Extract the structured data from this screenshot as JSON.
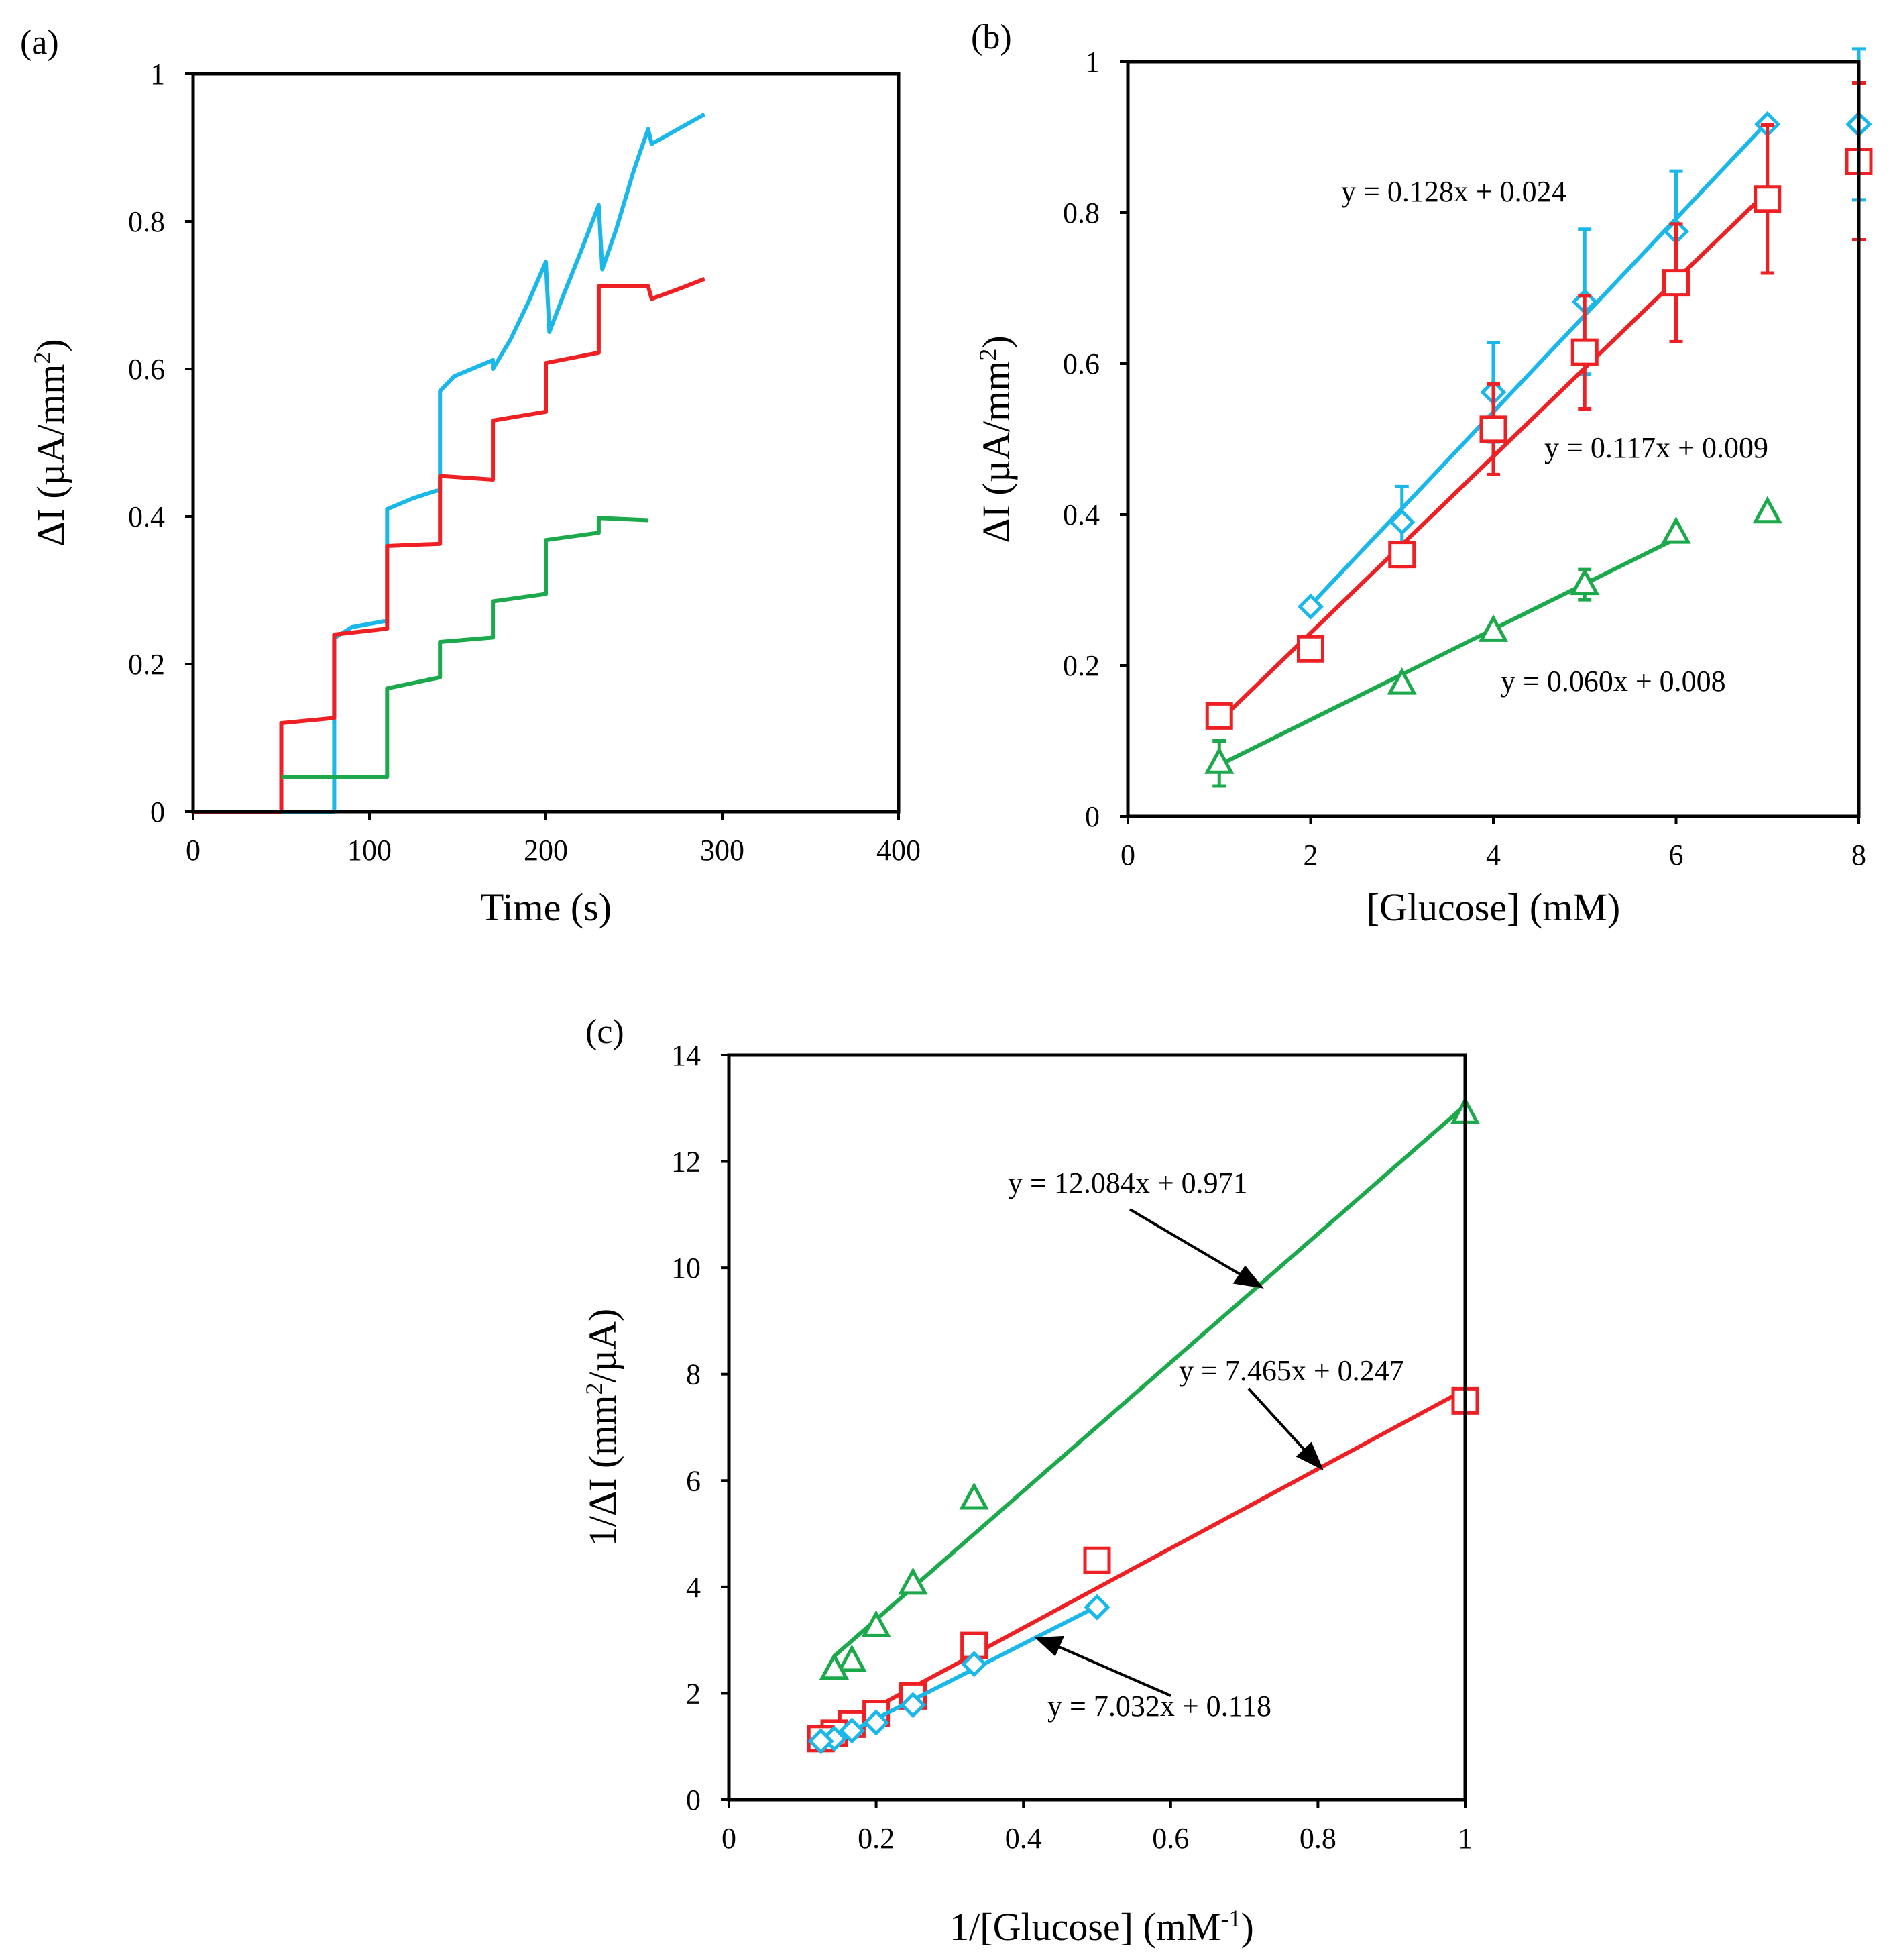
{
  "colors": {
    "blue": "#1ab7ea",
    "red": "#ee2024",
    "green": "#1ba94c",
    "axis": "#000000"
  },
  "chart_data": [
    {
      "type": "line",
      "panel_label": "(a)",
      "xlabel": "Time (s)",
      "ylabel_parts": [
        "ΔI (µA/mm",
        "2",
        ")"
      ],
      "xlim": [
        0,
        400
      ],
      "ylim": [
        0,
        1
      ],
      "xticks": [
        "0",
        "100",
        "200",
        "300",
        "400"
      ],
      "yticks": [
        "0",
        "0.2",
        "0.4",
        "0.6",
        "0.8",
        "1"
      ],
      "series": [
        {
          "name": "blue",
          "color": "#1ab7ea",
          "points": [
            [
              50,
              0
            ],
            [
              80,
              0
            ],
            [
              80,
              0.235
            ],
            [
              90,
              0.25
            ],
            [
              108,
              0.258
            ],
            [
              110,
              0.258
            ],
            [
              110,
              0.41
            ],
            [
              125,
              0.425
            ],
            [
              138,
              0.435
            ],
            [
              140,
              0.435
            ],
            [
              140,
              0.57
            ],
            [
              148,
              0.59
            ],
            [
              160,
              0.602
            ],
            [
              170,
              0.612
            ],
            [
              170,
              0.6
            ],
            [
              180,
              0.64
            ],
            [
              190,
              0.69
            ],
            [
              200,
              0.745
            ],
            [
              202,
              0.65
            ],
            [
              210,
              0.7
            ],
            [
              220,
              0.76
            ],
            [
              230,
              0.822
            ],
            [
              232,
              0.735
            ],
            [
              240,
              0.79
            ],
            [
              250,
              0.87
            ],
            [
              258,
              0.925
            ],
            [
              260,
              0.905
            ],
            [
              275,
              0.925
            ],
            [
              290,
              0.945
            ]
          ]
        },
        {
          "name": "red",
          "color": "#ee2024",
          "points": [
            [
              0,
              0
            ],
            [
              50,
              0
            ],
            [
              50,
              0.12
            ],
            [
              80,
              0.127
            ],
            [
              80,
              0.24
            ],
            [
              110,
              0.248
            ],
            [
              110,
              0.36
            ],
            [
              140,
              0.363
            ],
            [
              140,
              0.455
            ],
            [
              170,
              0.45
            ],
            [
              170,
              0.53
            ],
            [
              200,
              0.542
            ],
            [
              200,
              0.608
            ],
            [
              230,
              0.622
            ],
            [
              230,
              0.712
            ],
            [
              258,
              0.712
            ],
            [
              260,
              0.695
            ],
            [
              275,
              0.708
            ],
            [
              290,
              0.722
            ]
          ]
        },
        {
          "name": "green",
          "color": "#1ba94c",
          "points": [
            [
              50,
              0.047
            ],
            [
              110,
              0.047
            ],
            [
              110,
              0.167
            ],
            [
              140,
              0.182
            ],
            [
              140,
              0.23
            ],
            [
              170,
              0.236
            ],
            [
              170,
              0.285
            ],
            [
              200,
              0.295
            ],
            [
              200,
              0.368
            ],
            [
              230,
              0.378
            ],
            [
              230,
              0.398
            ],
            [
              258,
              0.395
            ]
          ]
        }
      ]
    },
    {
      "type": "scatter",
      "panel_label": "(b)",
      "xlabel": "[Glucose] (mM)",
      "ylabel_parts": [
        "ΔI (µA/mm",
        "2",
        ")"
      ],
      "xlim": [
        0,
        8
      ],
      "ylim": [
        0,
        1
      ],
      "xticks": [
        "0",
        "2",
        "4",
        "6",
        "8"
      ],
      "yticks": [
        "0",
        "0.2",
        "0.4",
        "0.6",
        "0.8",
        "1"
      ],
      "series": [
        {
          "name": "blue",
          "color": "#1ab7ea",
          "marker": "diamond",
          "x": [
            2,
            3,
            4,
            5,
            6,
            7,
            8
          ],
          "y": [
            0.278,
            0.39,
            0.562,
            0.682,
            0.775,
            0.917,
            0.917
          ],
          "err": [
            0,
            0.047,
            0.066,
            0.096,
            0.08,
            0,
            0.1
          ],
          "fit": {
            "slope": 0.128,
            "intercept": 0.024,
            "from": 2,
            "to": 7
          }
        },
        {
          "name": "red",
          "color": "#ee2024",
          "marker": "square",
          "x": [
            1,
            2,
            3,
            4,
            5,
            6,
            7,
            8
          ],
          "y": [
            0.133,
            0.222,
            0.347,
            0.513,
            0.615,
            0.707,
            0.818,
            0.868
          ],
          "err": [
            0,
            0,
            0.016,
            0.06,
            0.075,
            0.078,
            0.098,
            0.104
          ],
          "fit": {
            "slope": 0.117,
            "intercept": 0.009,
            "from": 1,
            "to": 7
          }
        },
        {
          "name": "green",
          "color": "#1ba94c",
          "marker": "triangle",
          "x": [
            1,
            3,
            4,
            5,
            6,
            7
          ],
          "y": [
            0.07,
            0.175,
            0.245,
            0.307,
            0.375,
            0.402
          ],
          "err": [
            0.03,
            0,
            0,
            0.02,
            0,
            0
          ],
          "fit": {
            "slope": 0.06,
            "intercept": 0.008,
            "from": 1,
            "to": 6
          }
        }
      ],
      "annotations": [
        {
          "text": "y = 0.128x + 0.024",
          "color": "#000000"
        },
        {
          "text": "y = 0.117x + 0.009",
          "color": "#000000"
        },
        {
          "text": "y = 0.060x + 0.008",
          "color": "#000000"
        }
      ]
    },
    {
      "type": "scatter",
      "panel_label": "(c)",
      "xlabel_parts": [
        "1/[Glucose]  (mM",
        "-1",
        ")"
      ],
      "ylabel_parts": [
        "1/ΔI (mm",
        "2",
        "/µA)"
      ],
      "xlim": [
        0,
        1
      ],
      "ylim": [
        0,
        14
      ],
      "xticks": [
        "0",
        "0.2",
        "0.4",
        "0.6",
        "0.8",
        "1"
      ],
      "yticks": [
        "0",
        "2",
        "4",
        "6",
        "8",
        "10",
        "12",
        "14"
      ],
      "series": [
        {
          "name": "green",
          "color": "#1ba94c",
          "marker": "triangle",
          "x": [
            1,
            0.333,
            0.25,
            0.2,
            0.167,
            0.143
          ],
          "y": [
            12.9,
            5.65,
            4.05,
            3.25,
            2.6,
            2.45
          ],
          "fit": {
            "slope": 12.084,
            "intercept": 0.971,
            "from": 0.143,
            "to": 1
          }
        },
        {
          "name": "red",
          "color": "#ee2024",
          "marker": "square",
          "x": [
            1,
            0.5,
            0.333,
            0.25,
            0.2,
            0.167,
            0.143,
            0.125
          ],
          "y": [
            7.5,
            4.5,
            2.9,
            1.95,
            1.62,
            1.42,
            1.25,
            1.15
          ],
          "fit": {
            "slope": 7.465,
            "intercept": 0.247,
            "from": 0.125,
            "to": 1
          }
        },
        {
          "name": "blue",
          "color": "#1ab7ea",
          "marker": "diamond",
          "x": [
            0.5,
            0.333,
            0.25,
            0.2,
            0.167,
            0.143,
            0.125
          ],
          "y": [
            3.62,
            2.55,
            1.78,
            1.45,
            1.3,
            1.15,
            1.1
          ],
          "fit": {
            "slope": 7.032,
            "intercept": 0.118,
            "from": 0.125,
            "to": 0.5
          }
        }
      ],
      "annotations": [
        {
          "text": "y = 12.084x + 0.971",
          "color": "#000000"
        },
        {
          "text": "y = 7.465x + 0.247",
          "color": "#000000"
        },
        {
          "text": "y = 7.032x + 0.118",
          "color": "#000000"
        }
      ]
    }
  ]
}
